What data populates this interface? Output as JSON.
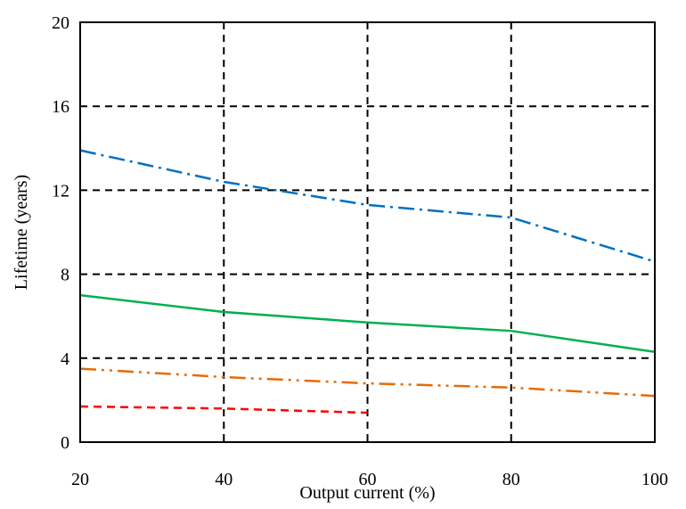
{
  "chart_data": {
    "type": "line",
    "title": "",
    "xlabel": "Output current (%)",
    "ylabel": "Lifetime (years)",
    "xlim": [
      20,
      100
    ],
    "ylim": [
      0,
      20
    ],
    "x_ticks": [
      20,
      40,
      60,
      80,
      100
    ],
    "y_ticks": [
      0,
      4,
      8,
      12,
      16,
      20
    ],
    "grid": true,
    "legend": "none",
    "series": [
      {
        "x": [
          20,
          40,
          60,
          80,
          100
        ],
        "values": [
          13.9,
          12.4,
          11.3,
          10.7,
          8.6
        ],
        "color": "#0070c0",
        "style": "dash-dot"
      },
      {
        "x": [
          20,
          40,
          60,
          80,
          100
        ],
        "values": [
          7.0,
          6.2,
          5.7,
          5.3,
          4.3
        ],
        "color": "#00b050",
        "style": "solid"
      },
      {
        "x": [
          20,
          40,
          60,
          80,
          100
        ],
        "values": [
          3.5,
          3.1,
          2.8,
          2.6,
          2.2
        ],
        "color": "#e46c0a",
        "style": "dash-dot-dot"
      },
      {
        "x": [
          20,
          40,
          60
        ],
        "values": [
          1.7,
          1.6,
          1.4
        ],
        "color": "#ff0000",
        "style": "dashed"
      }
    ]
  }
}
